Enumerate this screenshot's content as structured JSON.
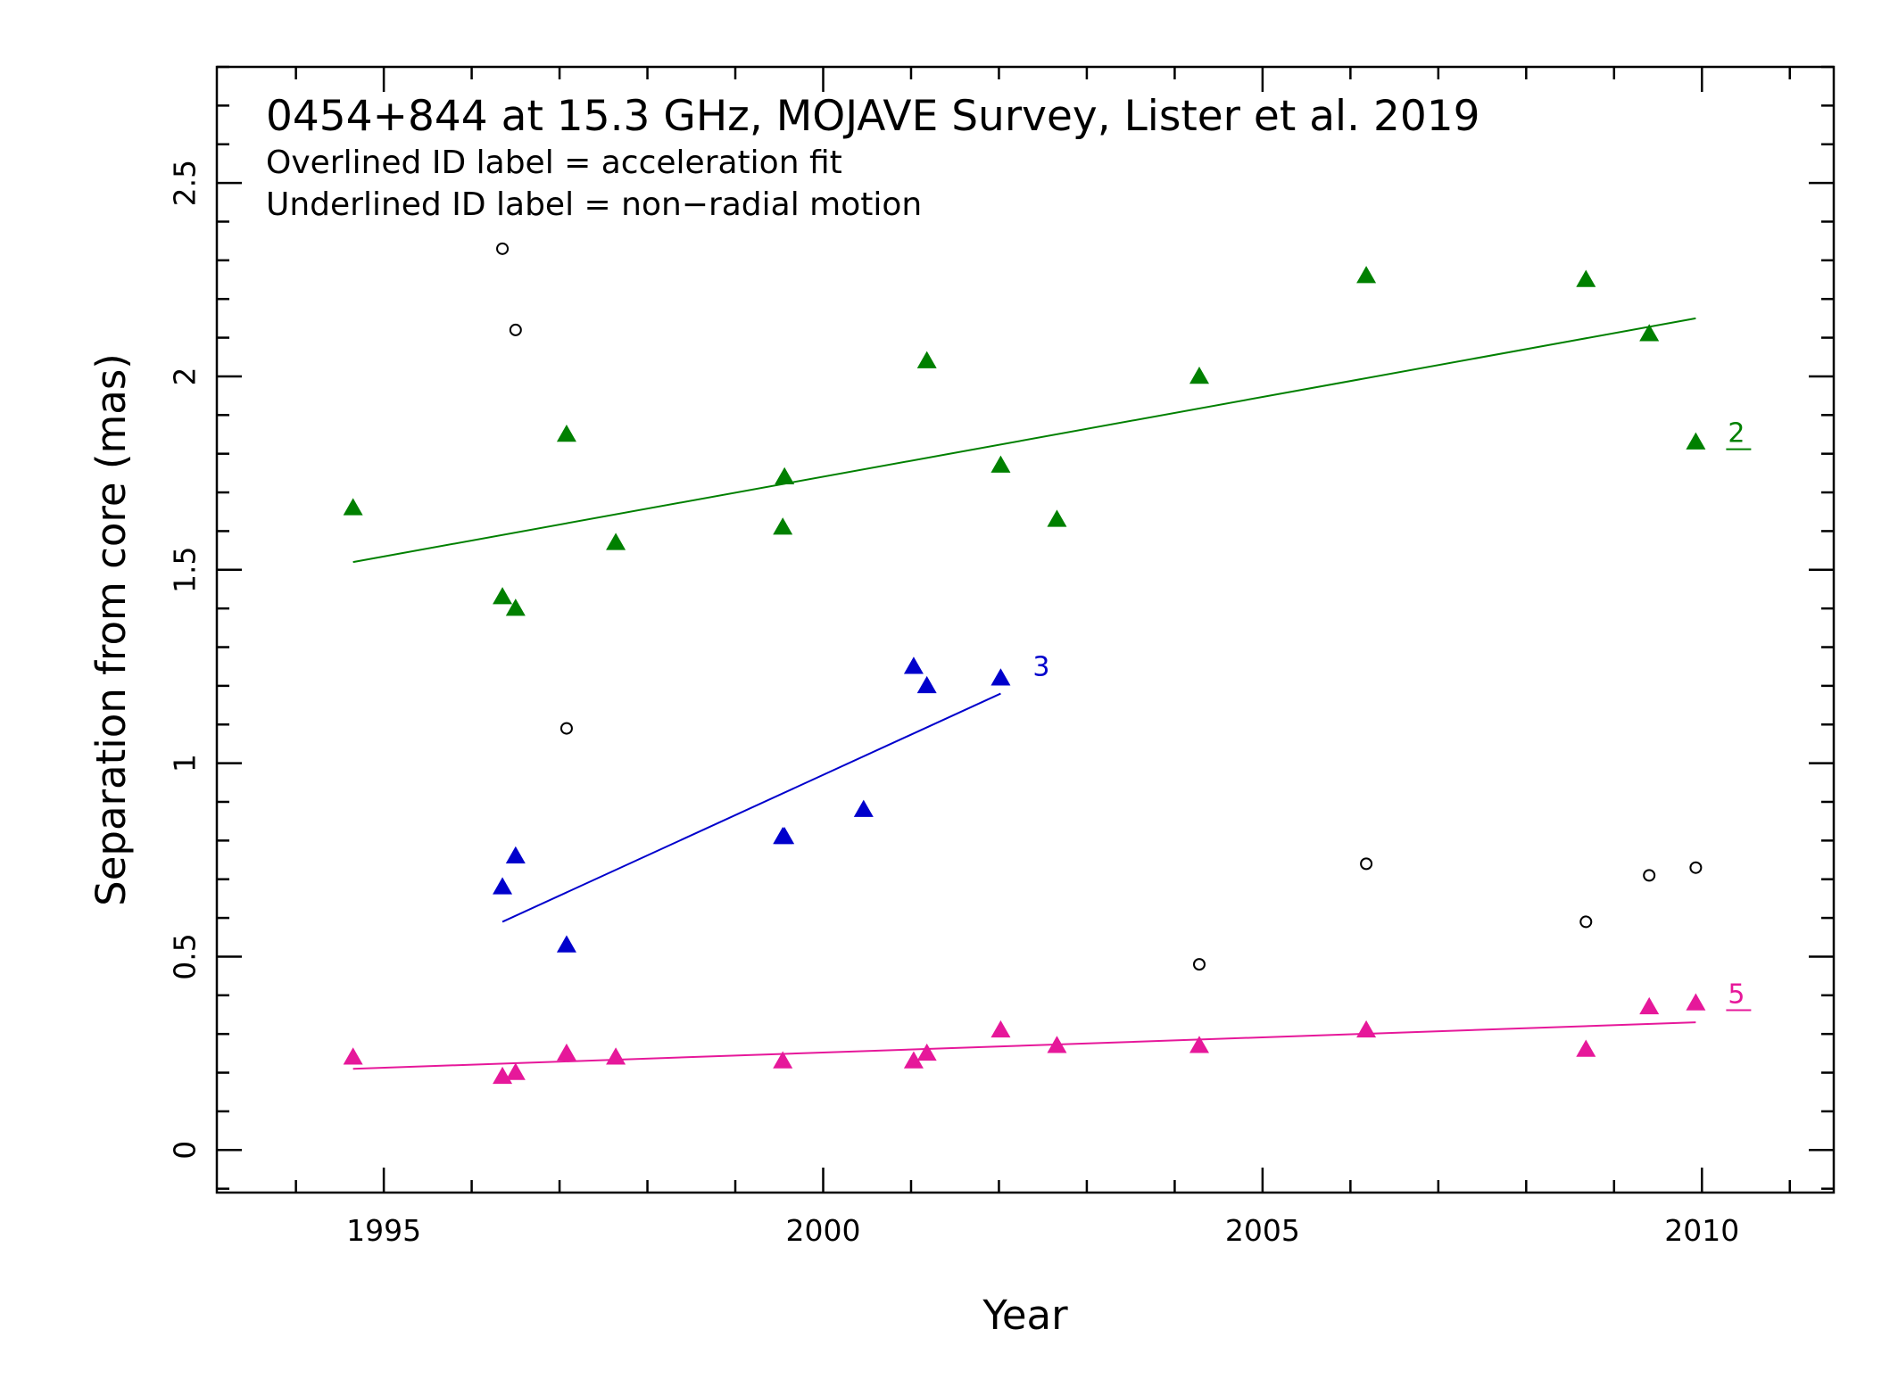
{
  "chart_data": {
    "type": "scatter",
    "title": "0454+844 at 15.3 GHz, MOJAVE Survey, Lister et al. 2019",
    "annotations": [
      "Overlined ID label = acceleration fit",
      "Underlined ID label = non−radial motion"
    ],
    "xlabel": "Year",
    "ylabel": "Separation from core (mas)",
    "xlim": [
      1993.1,
      2011.5
    ],
    "ylim": [
      -0.11,
      2.8
    ],
    "x_ticks": [
      1995,
      2000,
      2005,
      2010
    ],
    "x_tick_labels": [
      "1995",
      "2000",
      "2005",
      "2010"
    ],
    "y_ticks": [
      0,
      0.5,
      1,
      1.5,
      2,
      2.5
    ],
    "y_tick_labels": [
      "0",
      "0.5",
      "1",
      "1.5",
      "2",
      "2.5"
    ],
    "grid": false,
    "series": [
      {
        "name": "2",
        "color": "#008000",
        "marker": "triangle",
        "label_style": "underlined",
        "x": [
          1994.65,
          1996.35,
          1996.5,
          1997.08,
          1997.64,
          1999.54,
          1999.56,
          2001.18,
          2002.02,
          2002.66,
          2004.28,
          2006.18,
          2008.68,
          2009.4,
          2009.93
        ],
        "y": [
          1.66,
          1.43,
          1.4,
          1.85,
          1.57,
          1.61,
          1.74,
          2.04,
          1.77,
          1.63,
          2.0,
          2.26,
          2.25,
          2.11,
          1.83
        ],
        "fit": {
          "x": [
            1994.65,
            2009.93
          ],
          "y": [
            1.52,
            2.15
          ]
        }
      },
      {
        "name": "3",
        "color": "#0000cc",
        "marker": "triangle",
        "label_style": "plain",
        "x": [
          1996.35,
          1996.5,
          1997.08,
          1999.54,
          1999.56,
          2000.46,
          2001.03,
          2001.18,
          2002.02
        ],
        "y": [
          0.68,
          0.76,
          0.53,
          0.81,
          0.81,
          0.88,
          1.25,
          1.2,
          1.22
        ],
        "fit": {
          "x": [
            1996.35,
            2002.02
          ],
          "y": [
            0.59,
            1.18
          ]
        }
      },
      {
        "name": "5",
        "color": "#e6189a",
        "marker": "triangle",
        "label_style": "underlined",
        "x": [
          1994.65,
          1996.35,
          1996.5,
          1997.08,
          1997.64,
          1999.54,
          2001.03,
          2001.18,
          2002.02,
          2002.66,
          2004.28,
          2006.18,
          2008.68,
          2009.4,
          2009.93
        ],
        "y": [
          0.24,
          0.19,
          0.2,
          0.25,
          0.24,
          0.23,
          0.23,
          0.25,
          0.31,
          0.27,
          0.27,
          0.31,
          0.26,
          0.37,
          0.38
        ],
        "fit": {
          "x": [
            1994.65,
            2009.93
          ],
          "y": [
            0.21,
            0.33
          ]
        }
      },
      {
        "name": "",
        "color": "#000000",
        "marker": "open-circle",
        "x": [
          1996.35,
          1996.5,
          1997.08,
          2004.28,
          2006.18,
          2008.68,
          2009.4,
          2009.93
        ],
        "y": [
          2.33,
          2.12,
          1.09,
          0.48,
          0.74,
          0.59,
          0.71,
          0.73
        ]
      }
    ]
  }
}
